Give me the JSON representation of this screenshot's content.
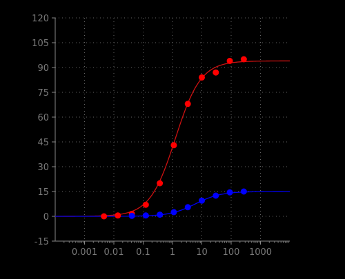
{
  "chart_data": {
    "type": "scatter",
    "title": "",
    "xlabel": "",
    "ylabel": "",
    "x_scale": "log",
    "xlim": [
      0.0001,
      10000
    ],
    "ylim": [
      -15,
      120
    ],
    "grid": true,
    "x_ticks": [
      0.001,
      0.01,
      0.1,
      1,
      10,
      100,
      1000
    ],
    "x_tick_labels": [
      "0.001",
      "0.01",
      "0.1",
      "1",
      "10",
      "100",
      "1000"
    ],
    "y_ticks": [
      -15,
      0,
      15,
      30,
      45,
      60,
      75,
      90,
      105,
      120
    ],
    "y_tick_labels": [
      "-15",
      "0",
      "15",
      "30",
      "45",
      "60",
      "75",
      "90",
      "105",
      "120"
    ],
    "series": [
      {
        "color": "#ff0000",
        "curve_color": "#cc1111",
        "x": [
          0.0046,
          0.0137,
          0.0412,
          0.123,
          0.37,
          1.11,
          3.33,
          10,
          30,
          90,
          270
        ],
        "y": [
          0,
          0.5,
          1.5,
          7,
          20,
          43,
          68,
          84,
          87,
          94,
          95
        ],
        "fit": {
          "bottom": 0,
          "top": 94,
          "ec50": 1.25,
          "hill": 1.0
        }
      },
      {
        "color": "#0000ff",
        "curve_color": "#0000ee",
        "x": [
          0.0412,
          0.123,
          0.37,
          1.11,
          3.33,
          10,
          30,
          90,
          270
        ],
        "y": [
          0.3,
          0.5,
          1,
          2.5,
          5.5,
          9.5,
          12.5,
          14.5,
          15
        ],
        "fit": {
          "bottom": 0,
          "top": 15,
          "ec50": 6,
          "hill": 1.0
        }
      }
    ]
  }
}
